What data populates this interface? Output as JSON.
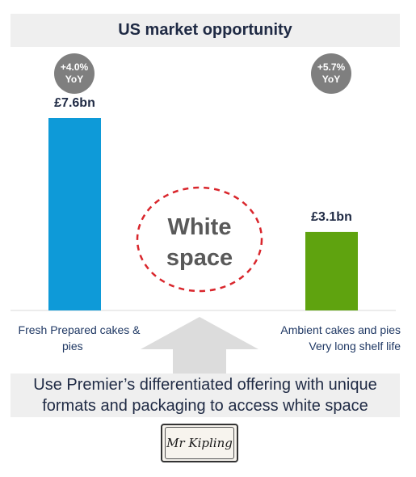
{
  "title": "US market opportunity",
  "colors": {
    "bar_fresh": "#0e9ad8",
    "bar_ambient": "#5fa30f",
    "badge": "#7f7f7f",
    "circle": "#d9262c",
    "arrow": "#dcdcdc"
  },
  "chart_data": {
    "type": "bar",
    "categories": [
      "Fresh Prepared cakes & pies",
      "Ambient cakes and pies Very long shelf life"
    ],
    "values": [
      7.6,
      3.1
    ],
    "value_labels": [
      "£7.6bn",
      "£3.1bn"
    ],
    "ylim": [
      0,
      7.6
    ],
    "growth": [
      {
        "line1": "+4.0%",
        "line2": "YoY"
      },
      {
        "line1": "+5.7%",
        "line2": "YoY"
      }
    ],
    "grid": false
  },
  "labels": {
    "fresh": [
      "Fresh Prepared cakes &",
      "pies"
    ],
    "ambient": [
      "Ambient cakes and pies",
      "Very long shelf life"
    ]
  },
  "white_space": [
    "White",
    "space"
  ],
  "bottom_text": [
    "Use Premier’s differentiated offering with unique",
    "formats and packaging to access white space"
  ],
  "logo": {
    "text": "Mr Kipling",
    "icon": "mr-kipling-logo"
  }
}
